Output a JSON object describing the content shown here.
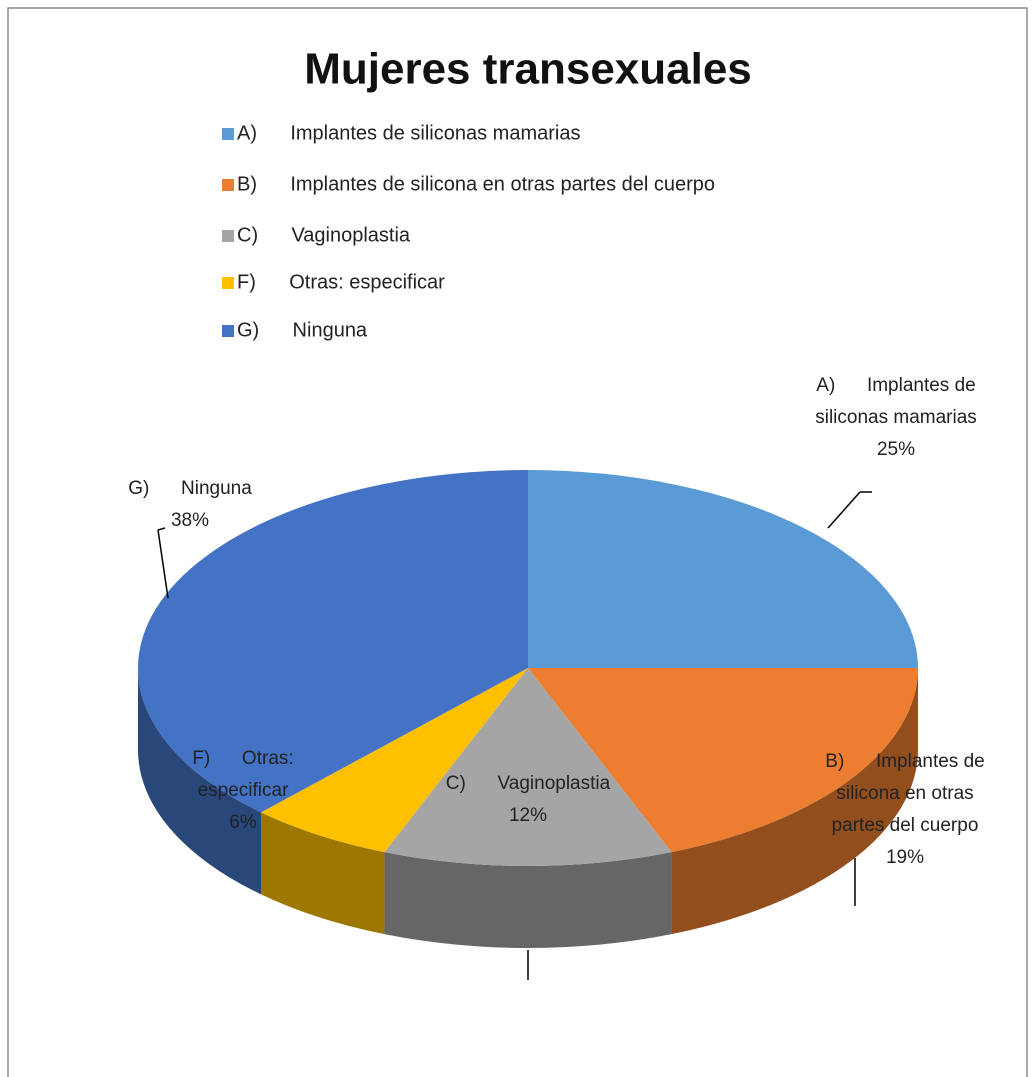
{
  "chart_data": {
    "type": "pie",
    "title": "Mujeres transexuales",
    "categories": [
      "A)      Implantes de siliconas mamarias",
      "B)      Implantes de silicona en otras partes del cuerpo",
      "C)      Vaginoplastia",
      "F)      Otras: especificar",
      "G)      Ninguna"
    ],
    "values": [
      25,
      19,
      12,
      6,
      38
    ],
    "value_labels": [
      "25%",
      "19%",
      "12%",
      "6%",
      "38%"
    ],
    "colors": [
      "#5b9bd5",
      "#ed7d31",
      "#a5a5a5",
      "#ffc000",
      "#4472c4"
    ]
  }
}
